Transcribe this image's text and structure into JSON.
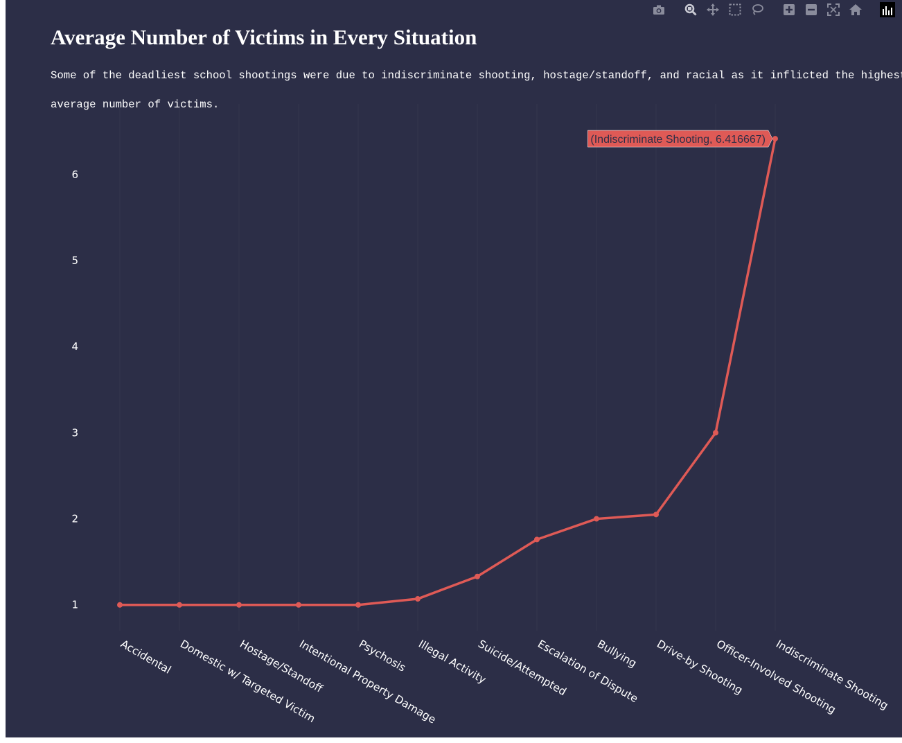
{
  "title": "Average Number of Victims in Every Situation",
  "subtitle_lines": [
    "Some of the deadliest school shootings were due to indiscriminate shooting, hostage/standoff, and racial as it inflicted the highest",
    "average number of victims."
  ],
  "colors": {
    "background": "#2c2e47",
    "line": "#df5a56",
    "grid": "#34364e",
    "text": "#ffffff",
    "modebar_icon": "#8a8c9c"
  },
  "modebar": [
    {
      "name": "camera-icon"
    },
    {
      "name": "zoom-icon"
    },
    {
      "name": "pan-icon"
    },
    {
      "name": "box-select-icon"
    },
    {
      "name": "lasso-select-icon"
    },
    {
      "name": "zoom-in-icon"
    },
    {
      "name": "zoom-out-icon"
    },
    {
      "name": "autoscale-icon"
    },
    {
      "name": "reset-axes-icon"
    },
    {
      "name": "plotly-logo-icon"
    }
  ],
  "chart_data": {
    "type": "line",
    "title": "Average Number of Victims in Every Situation",
    "xlabel": "",
    "ylabel": "",
    "categories": [
      "Accidental",
      "Domestic w/ Targeted Victim",
      "Hostage/Standoff",
      "Intentional Property Damage",
      "Psychosis",
      "Illegal Activity",
      "Suicide/Attempted",
      "Escalation of Dispute",
      "Bullying",
      "Drive-by Shooting",
      "Officer-Involved Shooting",
      "Indiscriminate Shooting"
    ],
    "values": [
      1,
      1,
      1,
      1,
      1,
      1.07,
      1.33,
      1.76,
      2.0,
      2.05,
      3.0,
      6.416667
    ],
    "ylim": [
      0.7,
      6.82
    ],
    "yticks": [
      1,
      2,
      3,
      4,
      5,
      6
    ],
    "grid": true,
    "hover": {
      "text": "(Indiscriminate Shooting, 6.416667)",
      "index": 11
    }
  }
}
